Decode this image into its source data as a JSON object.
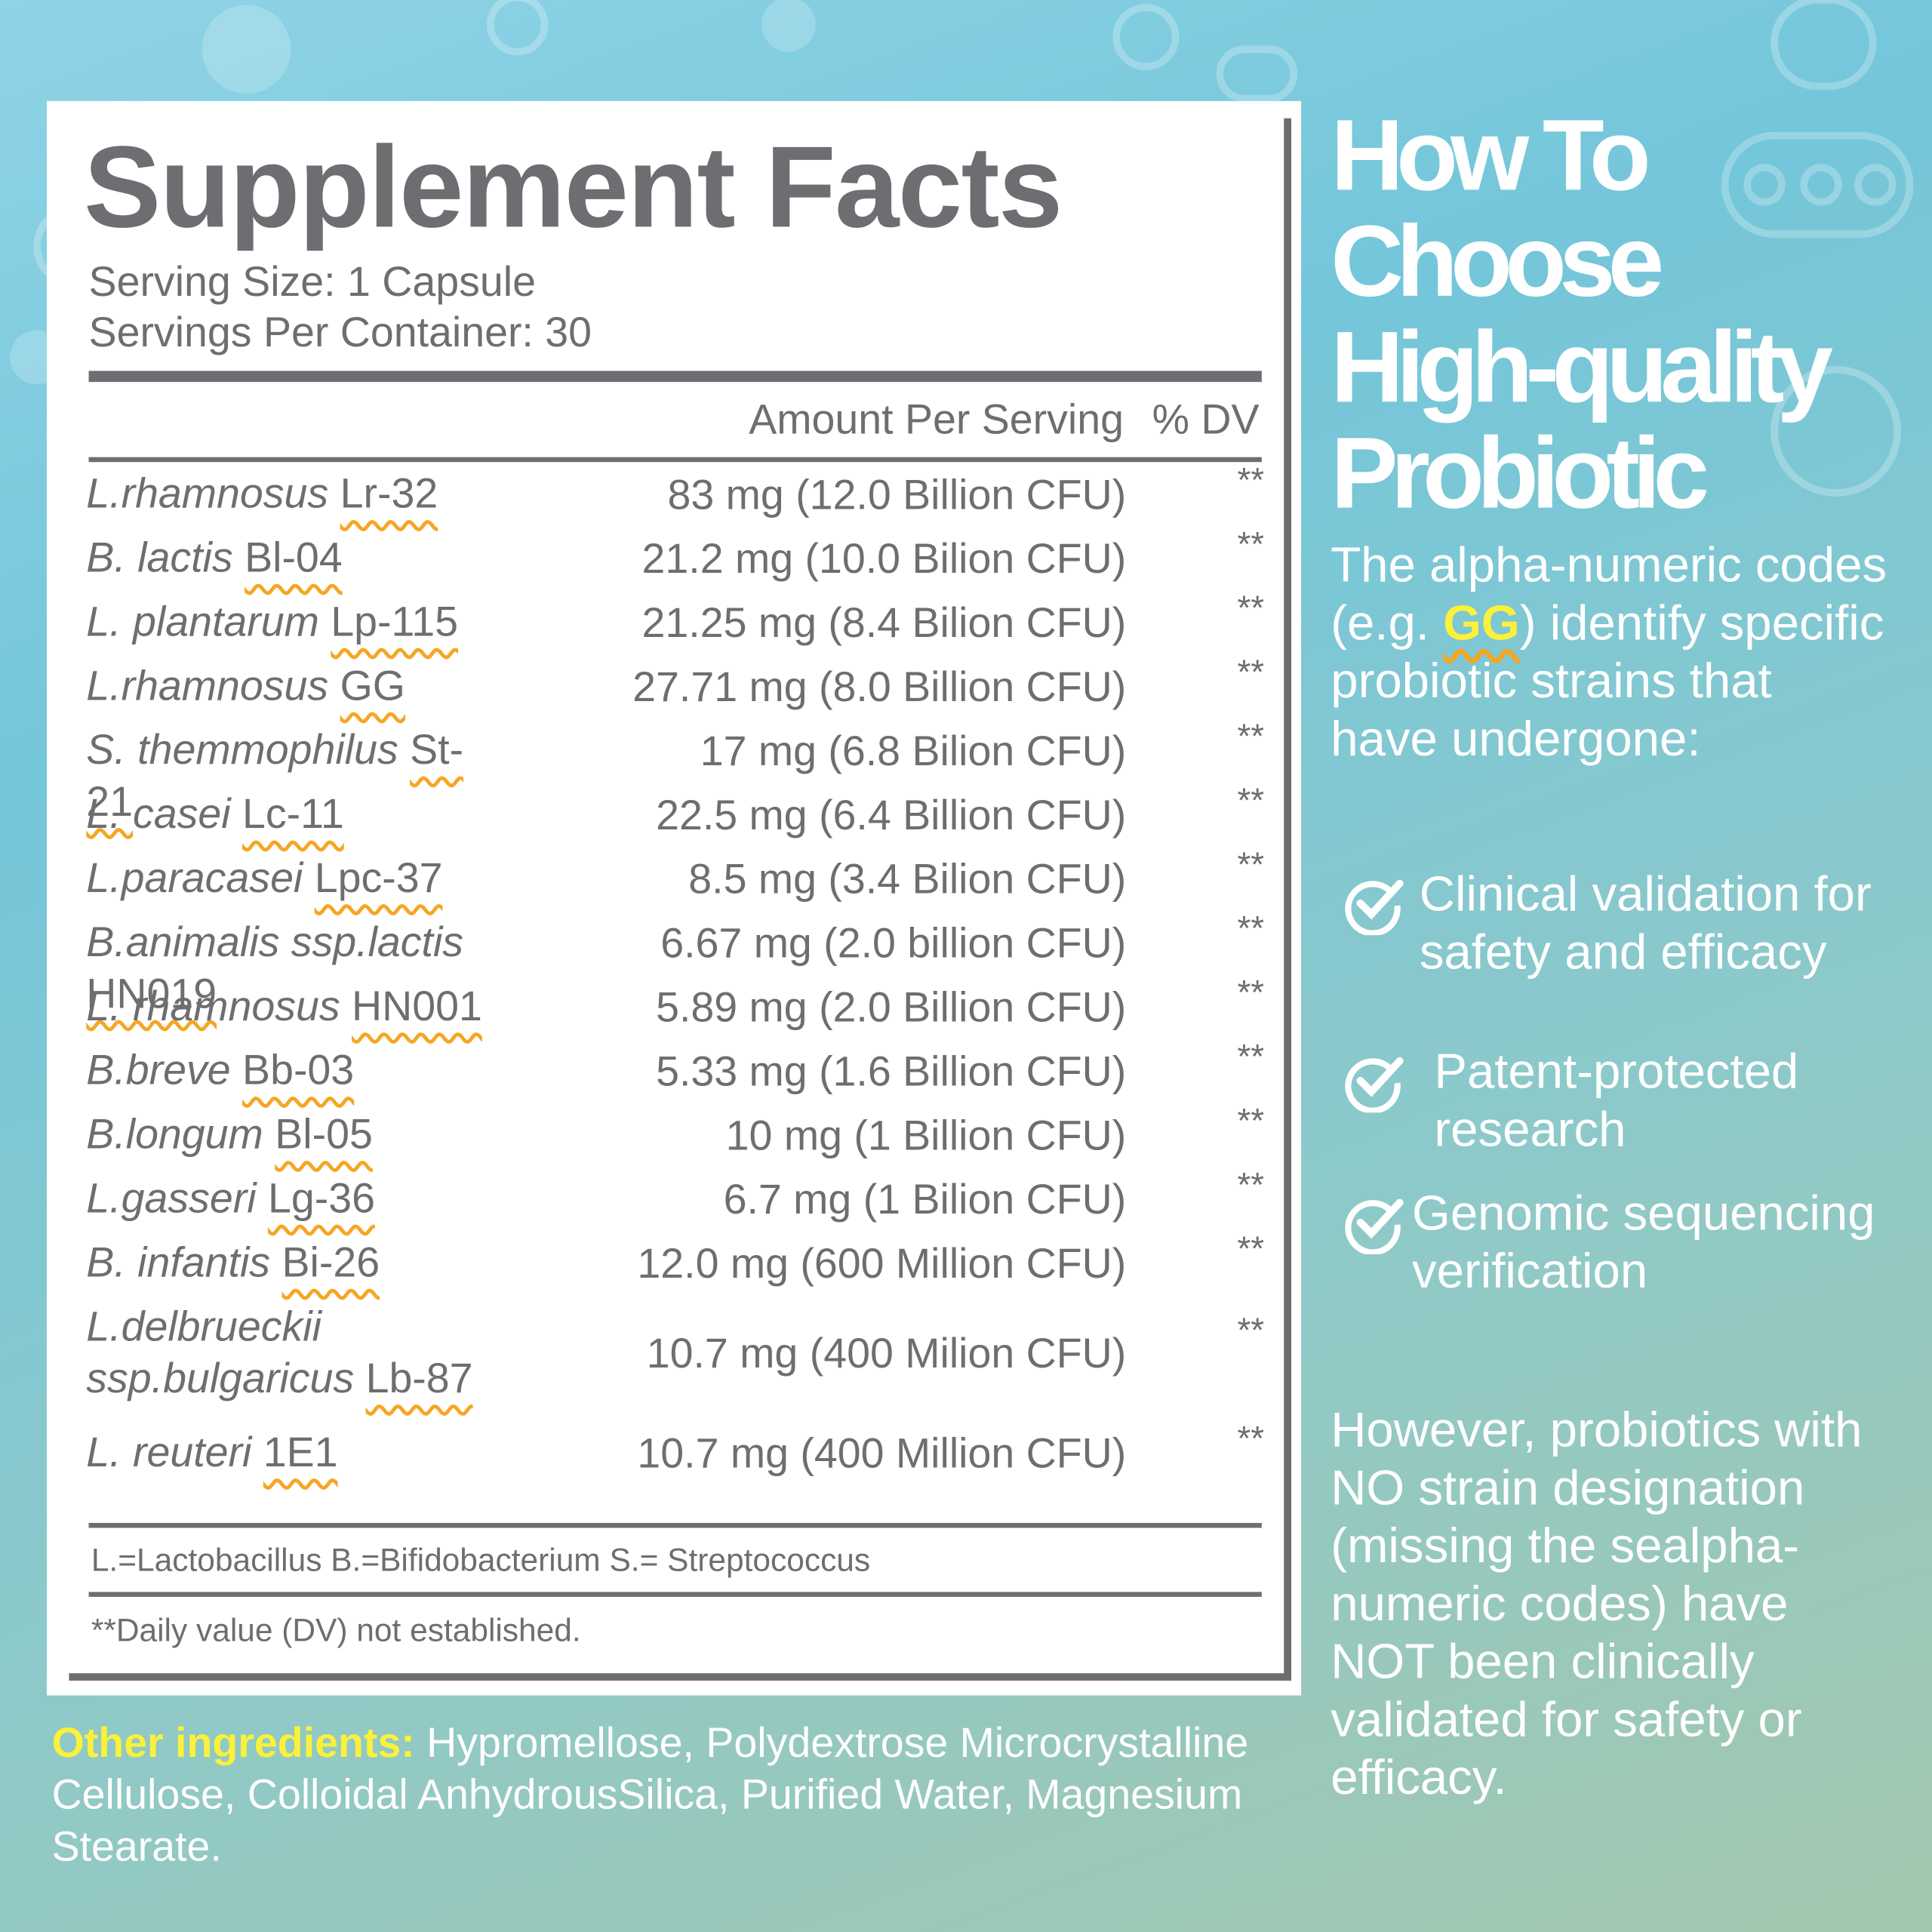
{
  "header": {
    "title": "Supplement Facts",
    "serving_size": "Serving Size: 1 Capsule",
    "servings_per_container": "Servings Per Container: 30"
  },
  "table": {
    "columns": [
      "Amount Per Serving",
      "% DV"
    ],
    "rows": [
      {
        "species": "L.rhamnosus",
        "strain": "Lr-32",
        "amount": "83 mg (12.0 Billion CFU)",
        "dv": "**"
      },
      {
        "species": "B. lactis",
        "strain": "Bl-04",
        "amount": "21.2 mg (10.0 Bilion CFU)",
        "dv": "**"
      },
      {
        "species": "L. plantarum",
        "strain": "Lp-115",
        "amount": "21.25 mg (8.4 Bilion CFU)",
        "dv": "**"
      },
      {
        "species": "L.rhamnosus",
        "strain": "GG",
        "amount": "27.71 mg (8.0 Billion CFU)",
        "dv": "**"
      },
      {
        "species": "S. themmophilus",
        "strain": "St-21",
        "amount": "17 mg (6.8 Bilion CFU)",
        "dv": "**"
      },
      {
        "species": "L. casei",
        "strain": "Lc-11",
        "amount": "22.5 mg (6.4 Billion CFU)",
        "dv": "**"
      },
      {
        "species": "L.paracasei",
        "strain": "Lpc-37",
        "amount": "8.5 mg (3.4 Bilion CFU)",
        "dv": "**"
      },
      {
        "species": "B.animalis ssp.lactis",
        "strain": "HN019",
        "amount": "6.67 mg (2.0 billion CFU)",
        "dv": "**"
      },
      {
        "species": "L. rhamnosus",
        "strain": "HN001",
        "amount": "5.89 mg (2.0 Billion CFU)",
        "dv": "**"
      },
      {
        "species": "B.breve",
        "strain": "Bb-03",
        "amount": "5.33 mg (1.6 Billion CFU)",
        "dv": "**"
      },
      {
        "species": "B.longum",
        "strain": "Bl-05",
        "amount": "10 mg (1 Billion CFU)",
        "dv": "**"
      },
      {
        "species": "L.gasseri",
        "strain": "Lg-36",
        "amount": "6.7 mg (1 Bilion CFU)",
        "dv": "**"
      },
      {
        "species": "B. infantis",
        "strain": "Bi-26",
        "amount": "12.0 mg (600 Million CFU)",
        "dv": "**"
      },
      {
        "species": "L.delbrueckii ssp.bulgaricus",
        "strain": "Lb-87",
        "amount": "10.7 mg (400 Milion CFU)",
        "dv": "**"
      },
      {
        "species": "L. reuteri",
        "strain": "1E1",
        "amount": "10.7 mg (400 Million CFU)",
        "dv": "**"
      }
    ]
  },
  "footnotes": [
    "L.=Lactobacillus B.=Bifidobacterium S.= Streptococcus",
    "**Daily value (DV) not established."
  ],
  "other_ingredients": {
    "label": "Other ingredients:",
    "text": "Hypromellose, Polydextrose Microcrystalline Cellulose, Colloidal AnhydrousSilica, Purified Water, Magnesium Stearate."
  },
  "sidebar": {
    "title_lines": [
      "How To",
      "Choose",
      "High-quality",
      "Probiotic"
    ],
    "intro_before": "The alpha-numeric codes (e.g. ",
    "intro_highlight": "GG",
    "intro_after": ") identify specific probiotic strains that have undergone:",
    "checklist": [
      "Clinical validation for safety and efficacy",
      "Patent-protected research",
      "Genomic sequencing verification"
    ],
    "conclusion": "However, probiotics with NO strain designation (missing the sealpha-numeric codes) have NOT been clinically validated for safety or efficacy."
  }
}
